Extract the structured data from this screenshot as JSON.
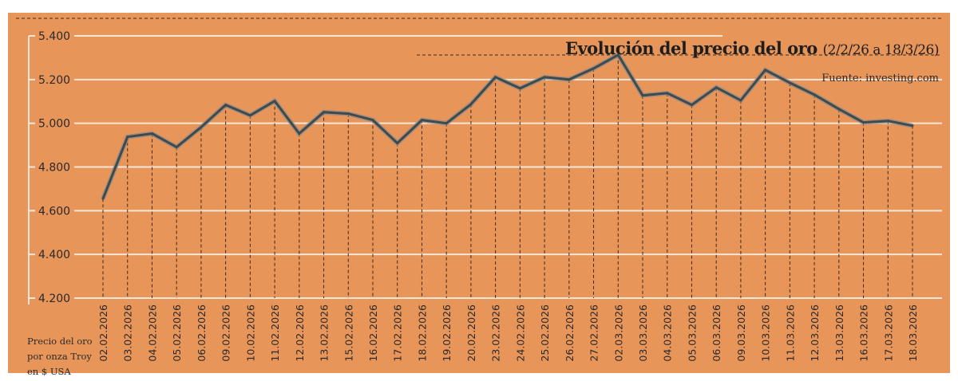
{
  "chart_data": {
    "type": "line",
    "title": "Evolución del precio del oro",
    "subtitle": "(2/2/26 a 18/3/26)",
    "source": "Fuente: investing.com",
    "ylabel_lines": [
      "Precio del oro",
      "por onza Troy",
      "en $ USA"
    ],
    "ylim": [
      4200,
      5400
    ],
    "yticks": [
      4200,
      4400,
      4600,
      4800,
      5000,
      5200,
      5400
    ],
    "ytick_labels": [
      "4.200",
      "4.400",
      "4.600",
      "4.800",
      "5.000",
      "5.200",
      "5.400"
    ],
    "grid": true,
    "colors": {
      "background": "#E8955A",
      "line": "#3f4a4c",
      "line_halo": "#8a8a8a",
      "grid": "#f6e6d8",
      "drop_lines": "#3a2a1e"
    },
    "x": [
      "02.02.2026",
      "03.02.2026",
      "04.02.2026",
      "05.02.2026",
      "06.02.2026",
      "09.02.2026",
      "10.02.2026",
      "11.02.2026",
      "12.02.2026",
      "13.02.2026",
      "15.02.2026",
      "16.02.2026",
      "17.02.2026",
      "18.02.2026",
      "19.02.2026",
      "20.02.2026",
      "23.02.2026",
      "24.02.2026",
      "25.02.2026",
      "26.02.2026",
      "27.02.2026",
      "02.03.2026",
      "03.03.2026",
      "04.03.2026",
      "05.03.2026",
      "06.03.2026",
      "09.03.2026",
      "10.03.2026",
      "11.03.2026",
      "12.03.2026",
      "13.03.2026",
      "16.03.2026",
      "17.03.2026",
      "18.03.2026"
    ],
    "values": [
      4655,
      4938,
      4953,
      4891,
      4982,
      5084,
      5036,
      5102,
      4953,
      5051,
      5044,
      5015,
      4909,
      5015,
      5000,
      5087,
      5211,
      5160,
      5211,
      5200,
      5251,
      5313,
      5127,
      5138,
      5084,
      5164,
      5105,
      5244,
      5185,
      5131,
      5065,
      5004,
      5011,
      4989
    ]
  }
}
